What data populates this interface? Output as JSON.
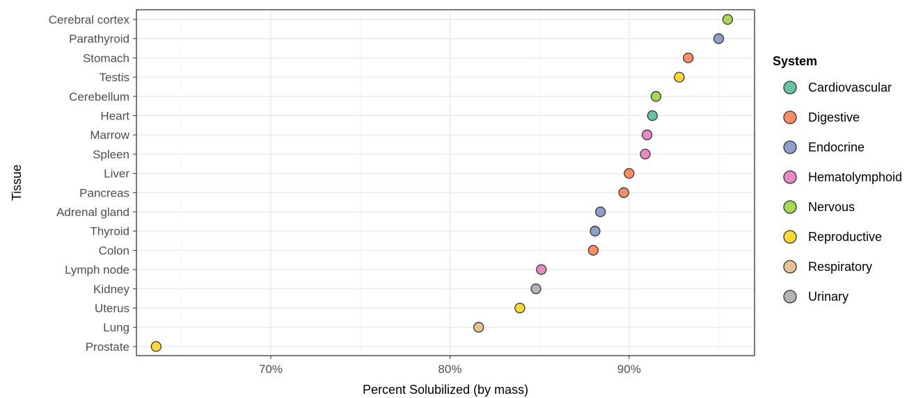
{
  "chart_data": {
    "type": "scatter",
    "xlabel": "Percent Solubilized (by mass)",
    "ylabel": "Tissue",
    "xlim": [
      62.5,
      97
    ],
    "x_ticks": [
      70,
      80,
      90
    ],
    "x_tick_labels": [
      "70%",
      "80%",
      "90%"
    ],
    "grid": true,
    "legend": {
      "title": "System",
      "placement": "right",
      "entries": [
        {
          "name": "Cardiovascular",
          "color": "#66c2a5"
        },
        {
          "name": "Digestive",
          "color": "#fc8d62"
        },
        {
          "name": "Endocrine",
          "color": "#8da0cb"
        },
        {
          "name": "Hematolymphoid",
          "color": "#e78ac3"
        },
        {
          "name": "Nervous",
          "color": "#a6d854"
        },
        {
          "name": "Reproductive",
          "color": "#ffd92f"
        },
        {
          "name": "Respiratory",
          "color": "#e5c494"
        },
        {
          "name": "Urinary",
          "color": "#b3b3b3"
        }
      ]
    },
    "points": [
      {
        "tissue": "Cerebral cortex",
        "value": 95.5,
        "system": "Nervous"
      },
      {
        "tissue": "Parathyroid",
        "value": 95.0,
        "system": "Endocrine"
      },
      {
        "tissue": "Stomach",
        "value": 93.3,
        "system": "Digestive"
      },
      {
        "tissue": "Testis",
        "value": 92.8,
        "system": "Reproductive"
      },
      {
        "tissue": "Cerebellum",
        "value": 91.5,
        "system": "Nervous"
      },
      {
        "tissue": "Heart",
        "value": 91.3,
        "system": "Cardiovascular"
      },
      {
        "tissue": "Marrow",
        "value": 91.0,
        "system": "Hematolymphoid"
      },
      {
        "tissue": "Spleen",
        "value": 90.9,
        "system": "Hematolymphoid"
      },
      {
        "tissue": "Liver",
        "value": 90.0,
        "system": "Digestive"
      },
      {
        "tissue": "Pancreas",
        "value": 89.7,
        "system": "Digestive"
      },
      {
        "tissue": "Adrenal gland",
        "value": 88.4,
        "system": "Endocrine"
      },
      {
        "tissue": "Thyroid",
        "value": 88.1,
        "system": "Endocrine"
      },
      {
        "tissue": "Colon",
        "value": 88.0,
        "system": "Digestive"
      },
      {
        "tissue": "Lymph node",
        "value": 85.1,
        "system": "Hematolymphoid"
      },
      {
        "tissue": "Kidney",
        "value": 84.8,
        "system": "Urinary"
      },
      {
        "tissue": "Uterus",
        "value": 83.9,
        "system": "Reproductive"
      },
      {
        "tissue": "Lung",
        "value": 81.6,
        "system": "Respiratory"
      },
      {
        "tissue": "Prostate",
        "value": 63.6,
        "system": "Reproductive"
      }
    ]
  }
}
